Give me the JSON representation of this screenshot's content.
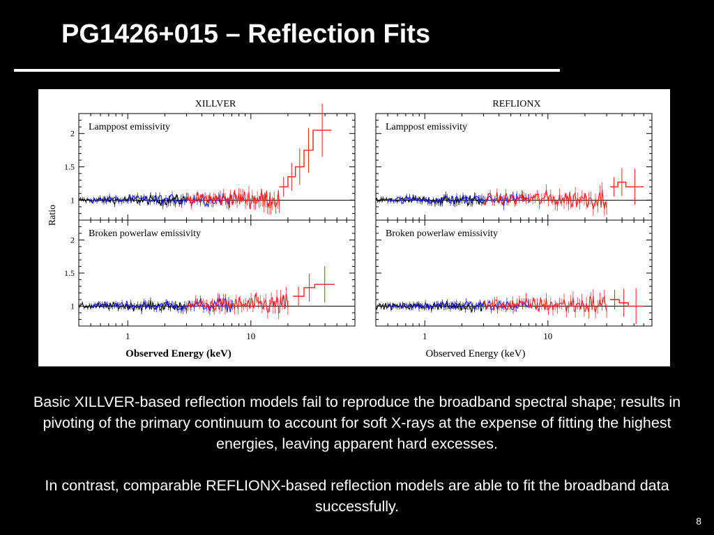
{
  "slide": {
    "title": "PG1426+015 – Reflection Fits",
    "paragraph_1": "Basic XILLVER-based reflection models fail to reproduce the broadband spectral shape; results in pivoting of the primary continuum to account for soft X-rays at the expense of fitting the highest energies, leaving apparent hard excesses.",
    "paragraph_2": "In contrast, comparable REFLIONX-based reflection models are able to fit the broadband data successfully.",
    "page_number": "8"
  },
  "colors": {
    "background": "#000000",
    "text": "#ffffff",
    "series_black": "#000000",
    "series_blue": "#1a1aff",
    "series_red": "#ff1a1a"
  },
  "chart_data": {
    "type": "line",
    "ylabel": "Ratio",
    "xscale": "log",
    "xlim": [
      0.4,
      70
    ],
    "x_ticks": [
      "1",
      "10"
    ],
    "x_tick_values": [
      1,
      10
    ],
    "y_ticks": [
      "1",
      "1.5",
      "2"
    ],
    "y_tick_values": [
      1,
      1.5,
      2
    ],
    "reference_line": 1,
    "legend": "none",
    "columns": [
      {
        "name": "XILLVER",
        "xlabel": "Observed Energy (keV)",
        "panels": [
          {
            "label": "Lamppost emissivity",
            "ylim": [
              0.7,
              2.3
            ],
            "series": [
              {
                "color": "black",
                "x": [
                  0.4,
                  3.0
                ],
                "y_mean": 1.0,
                "scatter": 0.04
              },
              {
                "color": "blue",
                "x": [
                  0.5,
                  7.0
                ],
                "y_mean": 1.01,
                "scatter": 0.05
              },
              {
                "color": "red",
                "x": [
                  3.0,
                  17.0
                ],
                "y_mean": 1.02,
                "scatter": 0.08
              },
              {
                "color": "red",
                "bins": [
                  {
                    "x": 17,
                    "y": 1.2
                  },
                  {
                    "x": 20,
                    "y": 1.35
                  },
                  {
                    "x": 23,
                    "y": 1.5
                  },
                  {
                    "x": 27,
                    "y": 1.75
                  },
                  {
                    "x": 32,
                    "y": 2.05
                  },
                  {
                    "x": 45,
                    "y": 2.05
                  }
                ]
              }
            ]
          },
          {
            "label": "Broken powerlaw emissivity",
            "ylim": [
              0.7,
              2.3
            ],
            "series": [
              {
                "color": "black",
                "x": [
                  0.4,
                  3.0
                ],
                "y_mean": 1.0,
                "scatter": 0.04
              },
              {
                "color": "blue",
                "x": [
                  0.5,
                  7.0
                ],
                "y_mean": 1.01,
                "scatter": 0.05
              },
              {
                "color": "red",
                "x": [
                  3.0,
                  20.0
                ],
                "y_mean": 1.02,
                "scatter": 0.08
              },
              {
                "color": "red",
                "bins": [
                  {
                    "x": 22,
                    "y": 1.15
                  },
                  {
                    "x": 27,
                    "y": 1.28
                  },
                  {
                    "x": 33,
                    "y": 1.33
                  },
                  {
                    "x": 48,
                    "y": 1.33
                  }
                ]
              }
            ]
          }
        ]
      },
      {
        "name": "REFLIONX",
        "xlabel": "Observed Energy (keV)",
        "panels": [
          {
            "label": "Lamppost emissivity",
            "ylim": [
              0.7,
              2.3
            ],
            "series": [
              {
                "color": "black",
                "x": [
                  0.4,
                  3.0
                ],
                "y_mean": 1.0,
                "scatter": 0.04
              },
              {
                "color": "blue",
                "x": [
                  0.5,
                  7.0
                ],
                "y_mean": 1.01,
                "scatter": 0.05
              },
              {
                "color": "red",
                "x": [
                  3.0,
                  30.0
                ],
                "y_mean": 1.02,
                "scatter": 0.08
              },
              {
                "color": "red",
                "bins": [
                  {
                    "x": 32,
                    "y": 1.2
                  },
                  {
                    "x": 37,
                    "y": 1.27
                  },
                  {
                    "x": 43,
                    "y": 1.2
                  },
                  {
                    "x": 60,
                    "y": 1.2
                  }
                ]
              }
            ]
          },
          {
            "label": "Broken powerlaw emissivity",
            "ylim": [
              0.7,
              2.3
            ],
            "series": [
              {
                "color": "black",
                "x": [
                  0.4,
                  3.0
                ],
                "y_mean": 1.0,
                "scatter": 0.04
              },
              {
                "color": "blue",
                "x": [
                  0.5,
                  7.0
                ],
                "y_mean": 1.01,
                "scatter": 0.05
              },
              {
                "color": "red",
                "x": [
                  3.0,
                  30.0
                ],
                "y_mean": 1.02,
                "scatter": 0.08
              },
              {
                "color": "red",
                "bins": [
                  {
                    "x": 32,
                    "y": 1.1
                  },
                  {
                    "x": 38,
                    "y": 1.05
                  },
                  {
                    "x": 45,
                    "y": 1.0
                  },
                  {
                    "x": 60,
                    "y": 1.0
                  }
                ]
              }
            ]
          }
        ]
      }
    ]
  }
}
